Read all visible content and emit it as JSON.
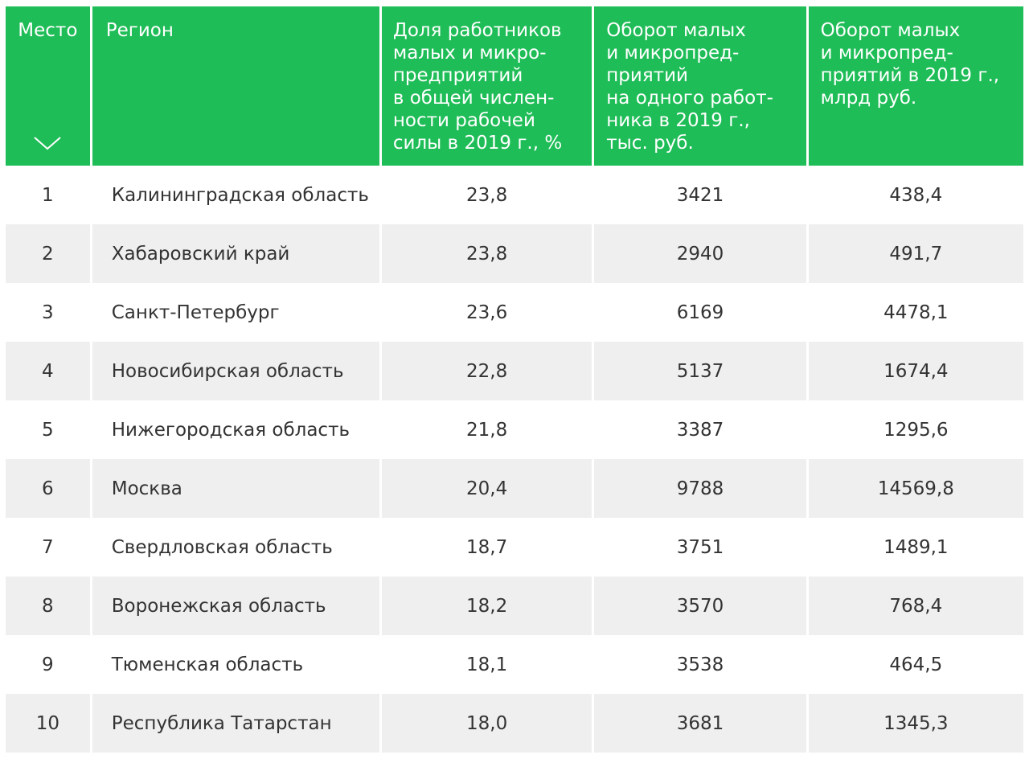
{
  "table": {
    "headers": {
      "place": "Место",
      "region": "Регион",
      "share": "Доля работников\nмалых и микро-\nпредприятий\nв общей числен-\nности рабочей\nсилы в 2019 г., %",
      "turnover_per_worker": "Оборот малых\nи микропред-\nприятий\nна одного работ-\nника в 2019 г.,\nтыс. руб.",
      "turnover_total": "Оборот малых\nи микропред-\nприятий в 2019 г.,\nмлрд руб."
    },
    "sort_icon": "chevron-down-icon",
    "rows": [
      {
        "place": "1",
        "region": "Калининградская область",
        "share": "23,8",
        "per_worker": "3421",
        "total": "438,4"
      },
      {
        "place": "2",
        "region": "Хабаровский край",
        "share": "23,8",
        "per_worker": "2940",
        "total": "491,7"
      },
      {
        "place": "3",
        "region": "Санкт-Петербург",
        "share": "23,6",
        "per_worker": "6169",
        "total": "4478,1"
      },
      {
        "place": "4",
        "region": "Новосибирская область",
        "share": "22,8",
        "per_worker": "5137",
        "total": "1674,4"
      },
      {
        "place": "5",
        "region": "Нижегородская область",
        "share": "21,8",
        "per_worker": "3387",
        "total": "1295,6"
      },
      {
        "place": "6",
        "region": "Москва",
        "share": "20,4",
        "per_worker": "9788",
        "total": "14569,8"
      },
      {
        "place": "7",
        "region": "Свердловская область",
        "share": "18,7",
        "per_worker": "3751",
        "total": "1489,1"
      },
      {
        "place": "8",
        "region": "Воронежская область",
        "share": "18,2",
        "per_worker": "3570",
        "total": "768,4"
      },
      {
        "place": "9",
        "region": "Тюменская область",
        "share": "18,1",
        "per_worker": "3538",
        "total": "464,5"
      },
      {
        "place": "10",
        "region": "Республика Татарстан",
        "share": "18,0",
        "per_worker": "3681",
        "total": "1345,3"
      }
    ]
  },
  "colors": {
    "header_bg": "#1fbd57",
    "header_text": "#ffffff",
    "row_alt_bg": "#efefef",
    "body_text": "#333333"
  }
}
